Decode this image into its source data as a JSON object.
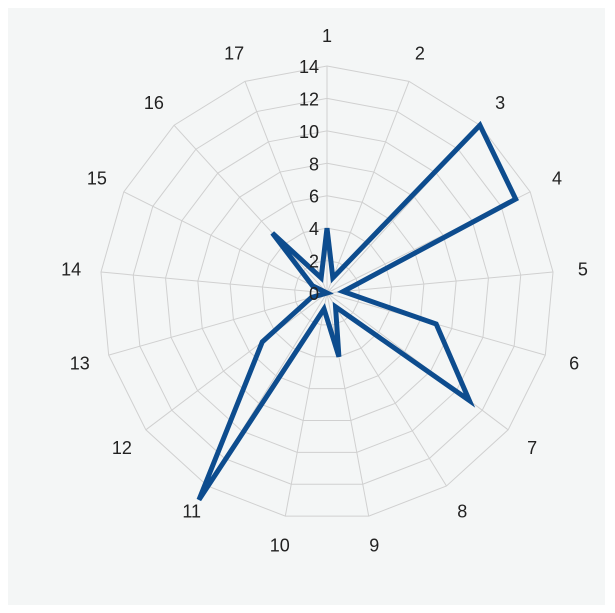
{
  "chart_data": {
    "type": "radar",
    "categories": [
      "1",
      "2",
      "3",
      "4",
      "5",
      "6",
      "7",
      "8",
      "9",
      "10",
      "11",
      "12",
      "13",
      "14",
      "15",
      "16",
      "17"
    ],
    "series": [
      {
        "values": [
          4,
          1,
          14,
          13,
          1,
          7,
          11,
          1,
          4,
          1,
          15,
          5,
          1,
          0,
          1,
          5,
          1
        ]
      }
    ],
    "r_ticks": [
      "0",
      "2",
      "4",
      "6",
      "8",
      "10",
      "12",
      "14"
    ],
    "rlim": [
      0,
      14
    ],
    "grid": true,
    "legend": "none",
    "colors": {
      "series": "#0d4c8e",
      "grid": "#d0d0d0",
      "background": "#f4f6f6"
    }
  }
}
